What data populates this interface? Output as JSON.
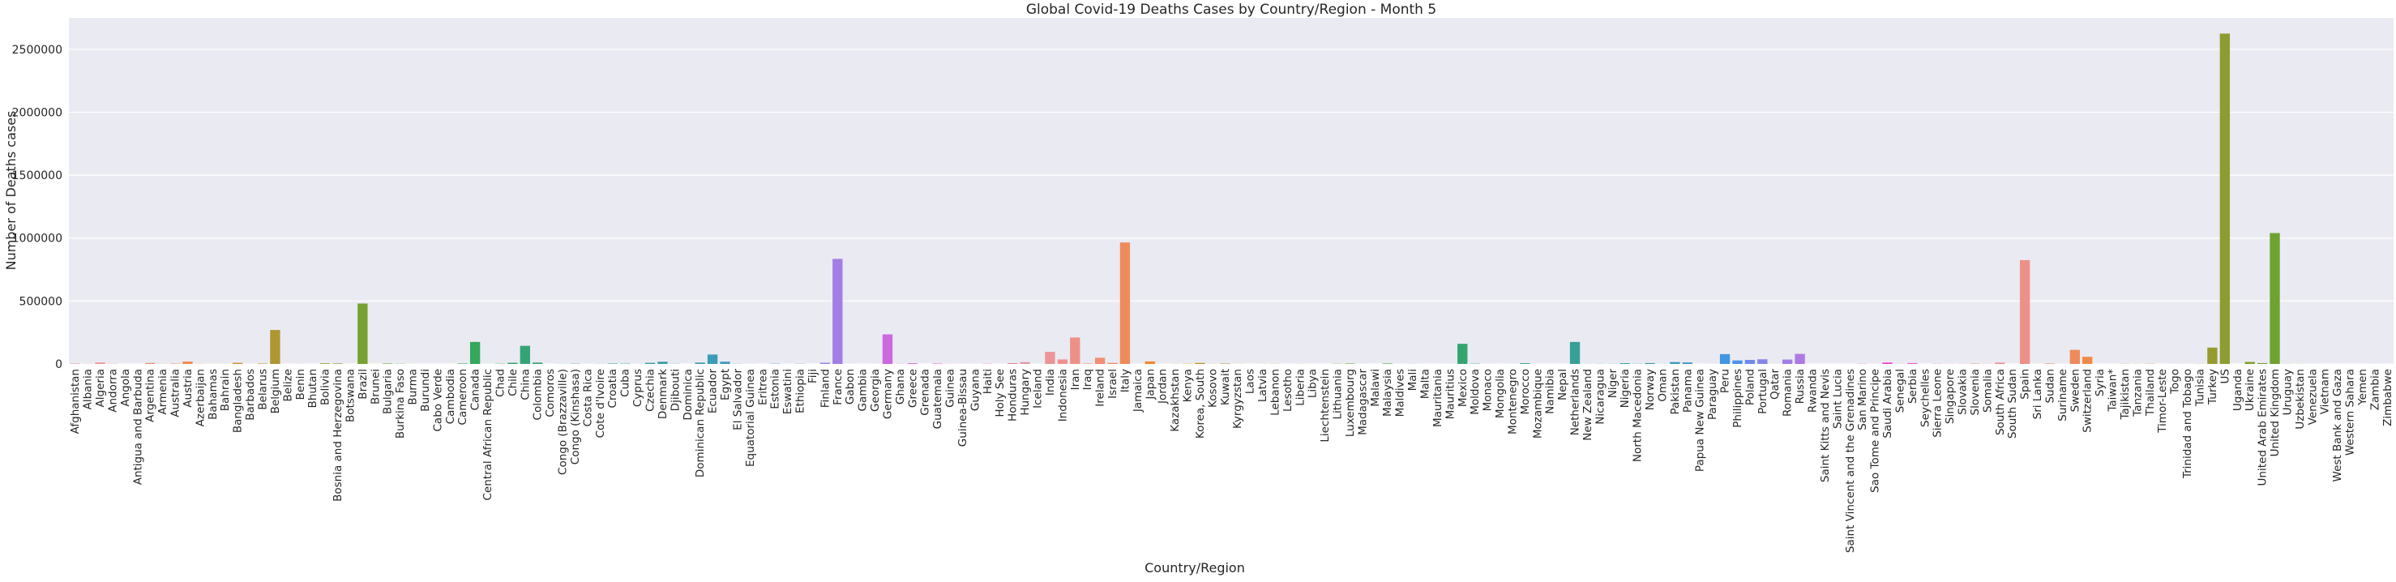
{
  "chart_data": {
    "type": "bar",
    "title": "Global Covid-19 Deaths Cases by Country/Region - Month 5",
    "xlabel": "Country/Region",
    "ylabel": "Number of Deaths cases",
    "ylim": [
      0,
      2750000
    ],
    "yticks": [
      0,
      500000,
      1000000,
      1500000,
      2000000,
      2500000
    ],
    "ytick_labels": [
      "0",
      "500000",
      "1000000",
      "1500000",
      "2000000",
      "2500000"
    ],
    "grid": true,
    "legend": "none",
    "categories": [
      "Afghanistan",
      "Albania",
      "Algeria",
      "Andorra",
      "Angola",
      "Antigua and Barbuda",
      "Argentina",
      "Armenia",
      "Australia",
      "Austria",
      "Azerbaijan",
      "Bahamas",
      "Bahrain",
      "Bangladesh",
      "Barbados",
      "Belarus",
      "Belgium",
      "Belize",
      "Benin",
      "Bhutan",
      "Bolivia",
      "Bosnia and Herzegovina",
      "Botswana",
      "Brazil",
      "Brunei",
      "Bulgaria",
      "Burkina Faso",
      "Burma",
      "Burundi",
      "Cabo Verde",
      "Cambodia",
      "Cameroon",
      "Canada",
      "Central African Republic",
      "Chad",
      "Chile",
      "China",
      "Colombia",
      "Comoros",
      "Congo (Brazzaville)",
      "Congo (Kinshasa)",
      "Costa Rica",
      "Cote d'Ivoire",
      "Croatia",
      "Cuba",
      "Cyprus",
      "Czechia",
      "Denmark",
      "Djibouti",
      "Dominica",
      "Dominican Republic",
      "Ecuador",
      "Egypt",
      "El Salvador",
      "Equatorial Guinea",
      "Eritrea",
      "Estonia",
      "Eswatini",
      "Ethiopia",
      "Fiji",
      "Finland",
      "France",
      "Gabon",
      "Gambia",
      "Georgia",
      "Germany",
      "Ghana",
      "Greece",
      "Grenada",
      "Guatemala",
      "Guinea",
      "Guinea-Bissau",
      "Guyana",
      "Haiti",
      "Holy See",
      "Honduras",
      "Hungary",
      "Iceland",
      "India",
      "Indonesia",
      "Iran",
      "Iraq",
      "Ireland",
      "Israel",
      "Italy",
      "Jamaica",
      "Japan",
      "Jordan",
      "Kazakhstan",
      "Kenya",
      "Korea, South",
      "Kosovo",
      "Kuwait",
      "Kyrgyzstan",
      "Laos",
      "Latvia",
      "Lebanon",
      "Lesotho",
      "Liberia",
      "Libya",
      "Liechtenstein",
      "Lithuania",
      "Luxembourg",
      "Madagascar",
      "Malawi",
      "Malaysia",
      "Maldives",
      "Mali",
      "Malta",
      "Mauritania",
      "Mauritius",
      "Mexico",
      "Moldova",
      "Monaco",
      "Mongolia",
      "Montenegro",
      "Morocco",
      "Mozambique",
      "Namibia",
      "Nepal",
      "Netherlands",
      "New Zealand",
      "Nicaragua",
      "Niger",
      "Nigeria",
      "North Macedonia",
      "Norway",
      "Oman",
      "Pakistan",
      "Panama",
      "Papua New Guinea",
      "Paraguay",
      "Peru",
      "Philippines",
      "Poland",
      "Portugal",
      "Qatar",
      "Romania",
      "Russia",
      "Rwanda",
      "Saint Kitts and Nevis",
      "Saint Lucia",
      "Saint Vincent and the Grenadines",
      "San Marino",
      "Sao Tome and Principe",
      "Saudi Arabia",
      "Senegal",
      "Serbia",
      "Seychelles",
      "Sierra Leone",
      "Singapore",
      "Slovakia",
      "Slovenia",
      "Somalia",
      "South Africa",
      "South Sudan",
      "Spain",
      "Sri Lanka",
      "Sudan",
      "Suriname",
      "Sweden",
      "Switzerland",
      "Syria",
      "Taiwan*",
      "Tajikistan",
      "Tanzania",
      "Thailand",
      "Timor-Leste",
      "Togo",
      "Trinidad and Tobago",
      "Tunisia",
      "Turkey",
      "US",
      "Uganda",
      "Ukraine",
      "United Arab Emirates",
      "United Kingdom",
      "Uruguay",
      "Uzbekistan",
      "Venezuela",
      "Vietnam",
      "West Bank and Gaza",
      "Western Sahara",
      "Yemen",
      "Zambia",
      "Zimbabwe"
    ],
    "values": [
      3500,
      900,
      11500,
      1600,
      100,
      100,
      8000,
      1200,
      3000,
      19000,
      900,
      300,
      400,
      9000,
      200,
      3400,
      270000,
      50,
      300,
      0,
      5000,
      4300,
      50,
      480000,
      50,
      3500,
      1500,
      150,
      30,
      30,
      0,
      3500,
      175000,
      50,
      1900,
      9500,
      144000,
      11000,
      30,
      600,
      2000,
      300,
      900,
      3300,
      2600,
      500,
      9000,
      17500,
      1300,
      0,
      11000,
      75000,
      18000,
      1100,
      400,
      0,
      2000,
      100,
      1600,
      0,
      9500,
      835000,
      400,
      30,
      400,
      235000,
      1100,
      5000,
      0,
      2500,
      600,
      300,
      300,
      1500,
      0,
      5500,
      14500,
      300,
      96000,
      36000,
      210000,
      3900,
      49500,
      8500,
      965000,
      300,
      20000,
      300,
      600,
      1500,
      8300,
      900,
      3600,
      500,
      0,
      600,
      900,
      0,
      500,
      100,
      30,
      1600,
      3300,
      300,
      100,
      3500,
      100,
      700,
      100,
      100,
      300,
      160000,
      2400,
      300,
      0,
      300,
      6000,
      30,
      0,
      100,
      175000,
      650,
      1000,
      900,
      6000,
      1500,
      7000,
      500,
      15000,
      12000,
      0,
      300,
      78000,
      28000,
      32000,
      37000,
      500,
      35000,
      80000,
      0,
      0,
      0,
      0,
      1300,
      300,
      11000,
      900,
      7000,
      0,
      1300,
      700,
      900,
      3300,
      1300,
      11000,
      100,
      825000,
      300,
      4000,
      300,
      112000,
      57000,
      100,
      200,
      1200,
      600,
      1600,
      0,
      400,
      200,
      1000,
      130000,
      2625000,
      0,
      16000,
      7000,
      1040000,
      600,
      500,
      300,
      0,
      100,
      0,
      100,
      300,
      100
    ],
    "colors": [
      "#ea96a3",
      "#eb959e",
      "#ec9497",
      "#ec9290",
      "#ed9188",
      "#ed907f",
      "#ee8f75",
      "#ef8d69",
      "#ef8b5a",
      "#f08948",
      "#f1862b",
      "#e48830",
      "#d88c31",
      "#cc8f31",
      "#c29231",
      "#b89431",
      "#ae9631",
      "#a69831",
      "#9e9a31",
      "#969b31",
      "#8e9d31",
      "#869e31",
      "#7fa031",
      "#77a131",
      "#6fa231",
      "#66a431",
      "#5da531",
      "#52a731",
      "#45a831",
      "#33aa32",
      "#32a945",
      "#33a852",
      "#33a75b",
      "#34a663",
      "#34a56a",
      "#35a570",
      "#35a475",
      "#35a37a",
      "#36a37e",
      "#36a282",
      "#36a286",
      "#36a18a",
      "#37a18e",
      "#37a092",
      "#37a096",
      "#37a09a",
      "#389f9e",
      "#389ea2",
      "#399ea7",
      "#399dab",
      "#3a9db0",
      "#3a9cb5",
      "#3b9bbb",
      "#3c9ac2",
      "#3d99ca",
      "#3f97d4",
      "#4295e0",
      "#4c92ed",
      "#6e8ceb",
      "#8487e8",
      "#9583e6",
      "#a37ee4",
      "#af79e3",
      "#b974e1",
      "#c36fe0",
      "#cd68df",
      "#d75ede",
      "#e251dc",
      "#ee3fdb",
      "#f43cd0",
      "#f34ac3",
      "#f156b7",
      "#ef5eab",
      "#ed65a0",
      "#eb6a95",
      "#ea6f8a"
    ]
  }
}
